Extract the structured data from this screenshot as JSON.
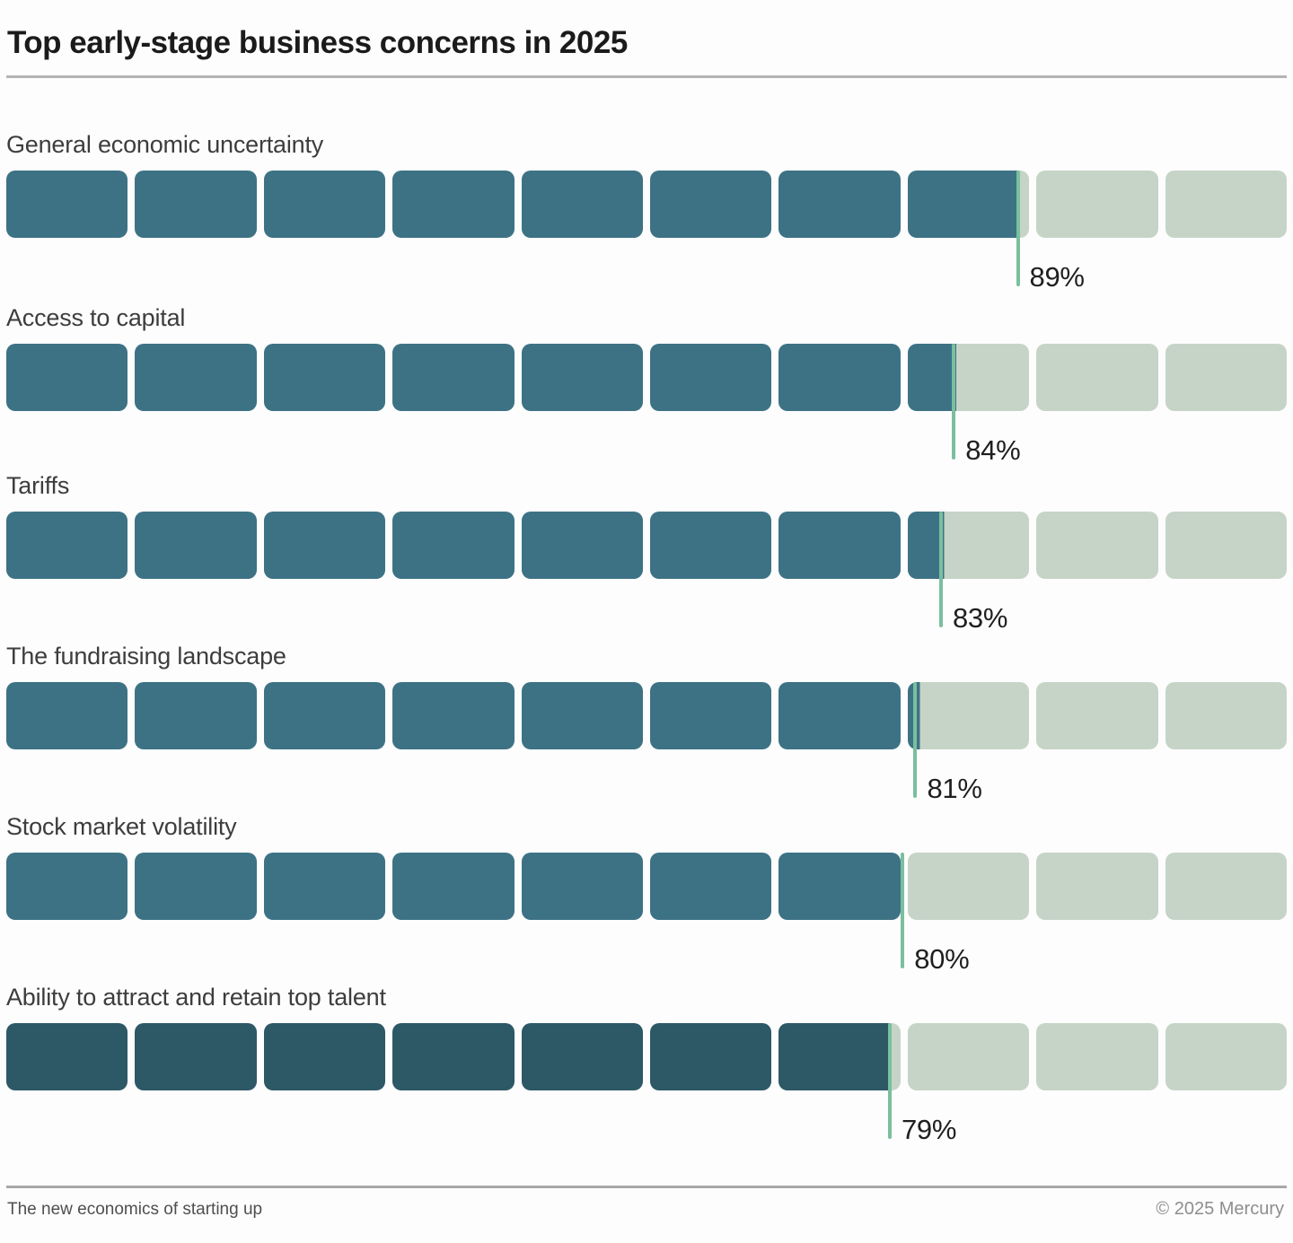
{
  "title": "Top early-stage business concerns in 2025",
  "footer": {
    "left": "The new economics of starting up",
    "right": "© 2025 Mercury"
  },
  "colors": {
    "bar_fill_teal": "#3d7285",
    "bar_fill_teal_dark_last_row": "#2d5866",
    "bar_empty_light_green": "#c6d4c7",
    "marker_green": "#7abf9e"
  },
  "chart_data": {
    "type": "bar",
    "subtype": "segmented-progress-blocks",
    "blocks_per_row": 10,
    "unit": "%",
    "categories": [
      "General economic uncertainty",
      "Access to capital",
      "Tariffs",
      "The fundraising landscape",
      "Stock market volatility",
      "Ability to attract and retain top talent"
    ],
    "values": [
      89,
      84,
      83,
      81,
      80,
      79
    ],
    "value_labels": [
      "89%",
      "84%",
      "83%",
      "81%",
      "80%",
      "79%"
    ],
    "xlim": [
      0,
      100
    ],
    "grid": false,
    "legend": false,
    "highlight_last_row": true
  }
}
